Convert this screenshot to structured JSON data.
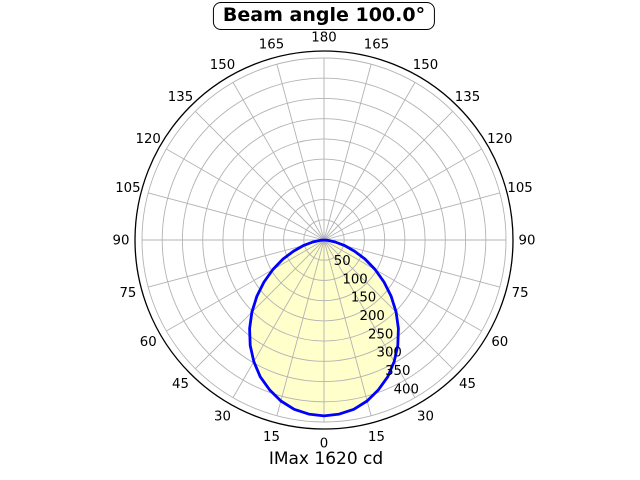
{
  "title": "Beam angle 100.0°",
  "footer": "IMax 1620 cd",
  "chart_data": {
    "type": "area",
    "subtype": "polar",
    "title": "Beam angle 100.0°",
    "annotation": "IMax 1620 cd",
    "beam_angle_deg": 100.0,
    "imax_cd": 1620,
    "orientation": "0-degrees-at-bottom, angles mirrored left/right",
    "angular_ticks_deg": [
      0,
      15,
      30,
      45,
      60,
      75,
      90,
      105,
      120,
      135,
      150,
      165,
      180
    ],
    "angular_grid_step_deg": 15,
    "radial_tick_labels": [
      50,
      100,
      150,
      200,
      250,
      300,
      350,
      400
    ],
    "radial_grid_max": 450,
    "radial_label_angle_deg": 25,
    "grid": true,
    "series": [
      {
        "name": "luminous-intensity-distribution",
        "symmetric": true,
        "points": [
          [
            0,
            435
          ],
          [
            5,
            432
          ],
          [
            10,
            425
          ],
          [
            15,
            412
          ],
          [
            20,
            394
          ],
          [
            25,
            373
          ],
          [
            30,
            347
          ],
          [
            35,
            318
          ],
          [
            40,
            286
          ],
          [
            45,
            252
          ],
          [
            50,
            217
          ],
          [
            55,
            181
          ],
          [
            60,
            146
          ],
          [
            65,
            112
          ],
          [
            70,
            80
          ],
          [
            75,
            52
          ],
          [
            80,
            28
          ],
          [
            85,
            9
          ],
          [
            90,
            0
          ]
        ]
      }
    ],
    "colors": {
      "curve": "#0000ff",
      "fill": "#ffffcc",
      "grid": "#b3b3b3",
      "outline": "#000000",
      "text": "#000000",
      "background": "#ffffff"
    }
  }
}
